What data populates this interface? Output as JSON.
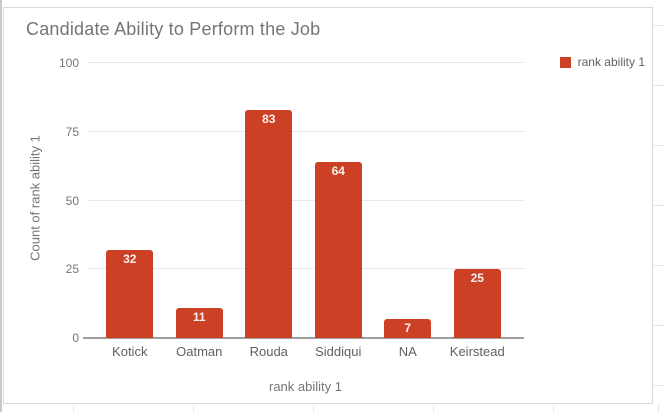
{
  "chart": {
    "title": "Candidate Ability to Perform the Job",
    "legend": {
      "label": "rank ability 1"
    },
    "x_axis_title": "rank ability 1",
    "y_axis_title": "Count of rank ability 1"
  },
  "chart_data": {
    "type": "bar",
    "title": "Candidate Ability to Perform the Job",
    "categories": [
      "Kotick",
      "Oatman",
      "Rouda",
      "Siddiqui",
      "NA",
      "Keirstead"
    ],
    "series": [
      {
        "name": "rank ability 1",
        "values": [
          32,
          11,
          83,
          64,
          7,
          25
        ]
      }
    ],
    "xlabel": "rank ability 1",
    "ylabel": "Count of rank ability 1",
    "ylim": [
      0,
      100
    ],
    "yticks": [
      0,
      25,
      50,
      75,
      100
    ],
    "grid": true,
    "legend_position": "top-right",
    "data_labels": true
  },
  "colors": {
    "bar": "#cc4125",
    "data_label": "#f8f1ec",
    "title_text": "#757575",
    "axis_text": "#757575",
    "category_text": "#616161",
    "gridline": "#e8e8e8",
    "baseline": "#9e9e9e",
    "card_border": "#d9d9d9"
  }
}
